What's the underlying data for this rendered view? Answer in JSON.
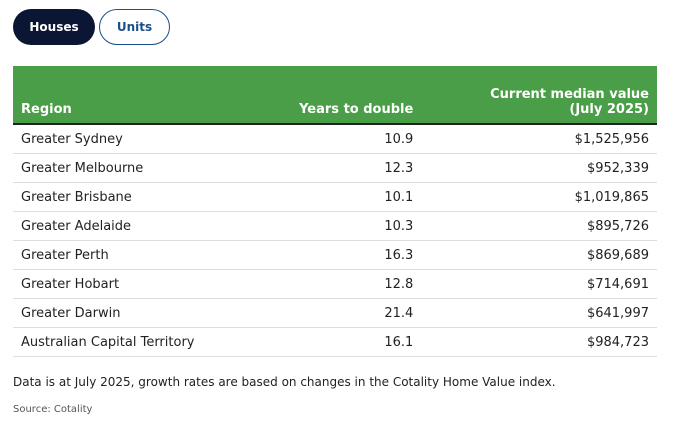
{
  "tabs": [
    "Houses",
    "Units"
  ],
  "table": {
    "header": [
      "Region",
      "Years to double",
      "Current median value (July 2025)"
    ],
    "rows": [
      [
        "Greater Sydney",
        "10.9",
        "$1,525,956"
      ],
      [
        "Greater Melbourne",
        "12.3",
        "$952,339"
      ],
      [
        "Greater Brisbane",
        "10.1",
        "$1,019,865"
      ],
      [
        "Greater Adelaide",
        "10.3",
        "$895,726"
      ],
      [
        "Greater Perth",
        "16.3",
        "$869,689"
      ],
      [
        "Greater Hobart",
        "12.8",
        "$714,691"
      ],
      [
        "Greater Darwin",
        "21.4",
        "$641,997"
      ],
      [
        "Australian Capital Territory",
        "16.1",
        "$984,723"
      ]
    ]
  },
  "note": "Data is at July 2025, growth rates are based on changes in the Cotality Home Value index.",
  "source": "Source: Cotality"
}
